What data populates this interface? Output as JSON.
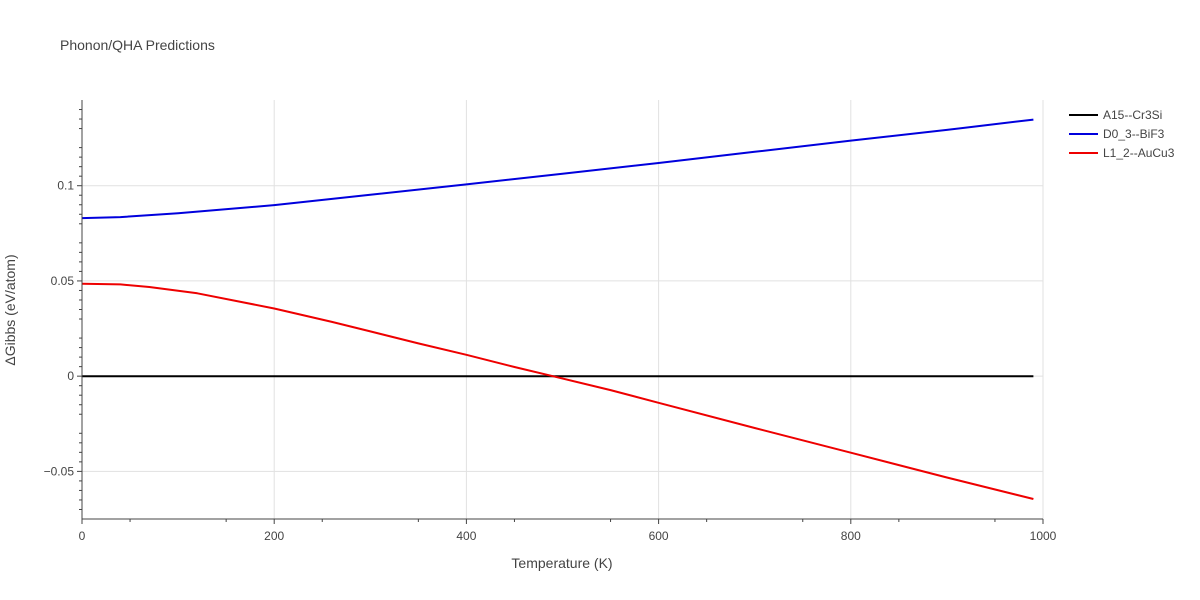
{
  "chart_data": {
    "type": "line",
    "title": "Phonon/QHA Predictions",
    "xlabel": "Temperature (K)",
    "ylabel": "ΔGibbs (eV/atom)",
    "xlim": [
      0,
      1000
    ],
    "ylim": [
      -0.075,
      0.145
    ],
    "x_ticks": [
      0,
      200,
      400,
      600,
      800,
      1000
    ],
    "x_tick_labels": [
      "0",
      "200",
      "400",
      "600",
      "800",
      "1000"
    ],
    "y_ticks": [
      -0.05,
      0,
      0.05,
      0.1
    ],
    "y_tick_labels": [
      "−0.05",
      "0",
      "0.05",
      "0.1"
    ],
    "grid": true,
    "legend_position": "top-right",
    "series": [
      {
        "name": "A15--Cr3Si",
        "color": "#000000",
        "x": [
          0,
          100,
          200,
          300,
          400,
          500,
          600,
          700,
          800,
          900,
          990
        ],
        "y": [
          0,
          0,
          0,
          0,
          0,
          0,
          0,
          0,
          0,
          0,
          0
        ]
      },
      {
        "name": "D0_3--BiF3",
        "color": "#0000dd",
        "x": [
          0,
          40,
          100,
          200,
          300,
          400,
          500,
          600,
          700,
          800,
          900,
          990
        ],
        "y": [
          0.083,
          0.0835,
          0.0855,
          0.0898,
          0.0952,
          0.1007,
          0.1063,
          0.1119,
          0.1178,
          0.1237,
          0.1293,
          0.1347
        ]
      },
      {
        "name": "L1_2--AuCu3",
        "color": "#ee0000",
        "x": [
          0,
          40,
          70,
          120,
          200,
          260,
          300,
          350,
          400,
          450,
          490,
          550,
          600,
          700,
          800,
          900,
          990
        ],
        "y": [
          0.0485,
          0.0482,
          0.0468,
          0.0435,
          0.0355,
          0.0285,
          0.0235,
          0.0172,
          0.0112,
          0.0048,
          0.0,
          -0.0073,
          -0.014,
          -0.0272,
          -0.0402,
          -0.0532,
          -0.0645
        ]
      }
    ]
  }
}
